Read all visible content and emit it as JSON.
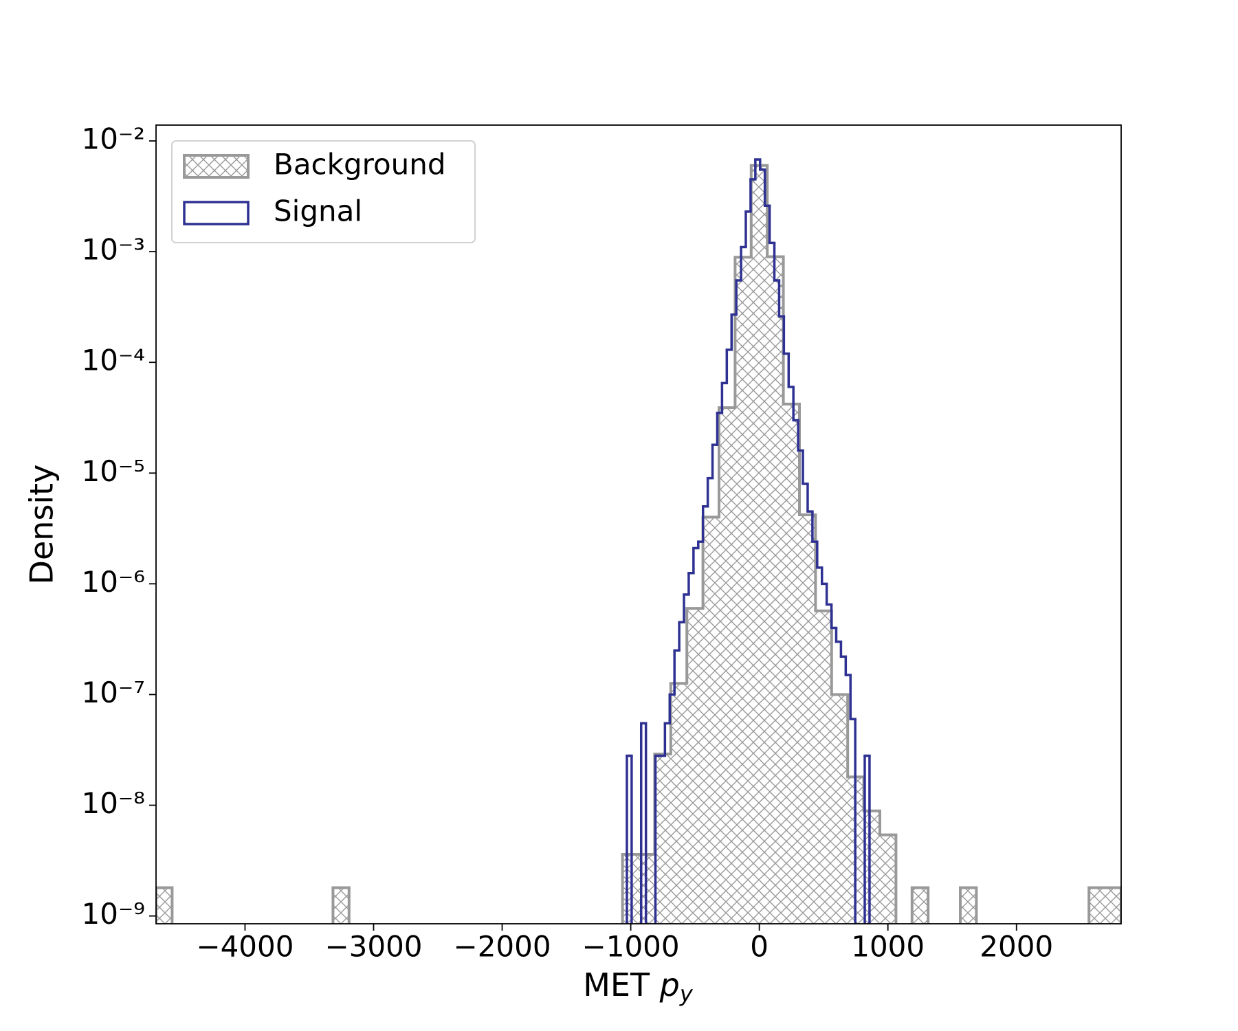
{
  "chart_data": {
    "type": "histogram",
    "xlabel": {
      "text": "MET ",
      "italic": "p",
      "subscript": "y"
    },
    "ylabel": "Density",
    "log_y": true,
    "legend": "upper left",
    "xlim": [
      -4692,
      2814
    ],
    "ylim": [
      8.5e-10,
      0.0139
    ],
    "xticks": [
      {
        "value": -4000,
        "label": "−4000"
      },
      {
        "value": -3000,
        "label": "−3000"
      },
      {
        "value": -2000,
        "label": "−2000"
      },
      {
        "value": -1000,
        "label": "−1000"
      },
      0,
      1000,
      2000
    ],
    "yticks": [
      {
        "value": 1e-09,
        "label": "10⁻⁹"
      },
      {
        "value": 1e-08,
        "label": "10⁻⁸"
      },
      {
        "value": 1e-07,
        "label": "10⁻⁷"
      },
      {
        "value": 1e-06,
        "label": "10⁻⁶"
      },
      {
        "value": 1e-05,
        "label": "10⁻⁵"
      },
      {
        "value": 0.0001,
        "label": "10⁻⁴"
      },
      {
        "value": 0.001,
        "label": "10⁻³"
      },
      {
        "value": 0.01,
        "label": "10⁻²"
      }
    ],
    "series": [
      {
        "name": "Background",
        "color": "#999999",
        "hatch": true,
        "bins": [
          -4692.0,
          -4566.9,
          -4441.8,
          -4316.7,
          -4191.6,
          -4066.5,
          -3941.4,
          -3816.3,
          -3691.2,
          -3566.1,
          -3441.0,
          -3315.9,
          -3190.8,
          -3065.7,
          -2940.6,
          -2815.5,
          -2690.4,
          -2565.3,
          -2440.2,
          -2315.1,
          -2190.0,
          -2064.9,
          -1939.8,
          -1814.7,
          -1689.6,
          -1564.5,
          -1439.4,
          -1314.3,
          -1189.2,
          -1064.1,
          -939.0,
          -813.9,
          -688.8,
          -563.7,
          -438.6,
          -313.5,
          -188.4,
          -63.3,
          61.8,
          186.9,
          312.0,
          437.1,
          562.2,
          687.3,
          812.4,
          937.5,
          1062.6,
          1187.7,
          1312.8,
          1437.9,
          1563.0,
          1688.1,
          1813.2,
          1938.3,
          2063.4,
          2188.5,
          2313.6,
          2438.7,
          2563.8,
          2688.9,
          2814.0
        ],
        "values": [
          1.8e-09,
          0,
          0,
          0,
          0,
          0,
          0,
          0,
          0,
          0,
          0,
          1.8e-09,
          0,
          0,
          0,
          0,
          0,
          0,
          0,
          0,
          0,
          0,
          0,
          0,
          0,
          0,
          0,
          0,
          0,
          3.6e-09,
          3.6e-09,
          2.9e-08,
          1.26e-07,
          6e-07,
          4e-06,
          3.9e-05,
          0.00089,
          0.006,
          0.0009,
          4.2e-05,
          4.2e-06,
          5.7e-07,
          1e-07,
          1.8e-08,
          8.9e-09,
          5.4e-09,
          0,
          1.8e-09,
          0,
          0,
          1.8e-09,
          0,
          0,
          0,
          0,
          0,
          0,
          0,
          1.8e-09,
          1.8e-09
        ]
      },
      {
        "name": "Signal",
        "color": "#2e3192",
        "hatch": false,
        "bins": [
          -1030,
          -993,
          -956,
          -919,
          -882,
          -845,
          -808,
          -771,
          -734,
          -697,
          -660,
          -623,
          -586,
          -549,
          -512,
          -475,
          -438,
          -401,
          -364,
          -327,
          -290,
          -253,
          -216,
          -179,
          -142,
          -105,
          -68,
          -31,
          6,
          43,
          80,
          117,
          154,
          191,
          228,
          265,
          302,
          339,
          376,
          413,
          450,
          487,
          524,
          561,
          598,
          635,
          672,
          709,
          746,
          783,
          820,
          857,
          894
        ],
        "values": [
          2.8e-08,
          0,
          0,
          5.5e-08,
          0,
          0,
          2.8e-08,
          2.8e-08,
          5.5e-08,
          1e-07,
          2.5e-07,
          4.5e-07,
          8e-07,
          1.25e-06,
          2.1e-06,
          2.4e-06,
          5e-06,
          9e-06,
          1.8e-05,
          3.5e-05,
          6.5e-05,
          0.00013,
          0.00027,
          0.00055,
          0.0011,
          0.0023,
          0.0045,
          0.0068,
          0.0055,
          0.0026,
          0.0012,
          0.00055,
          0.00026,
          0.00012,
          6e-05,
          3e-05,
          1.6e-05,
          8e-06,
          4.5e-06,
          2.4e-06,
          1.4e-06,
          1e-06,
          6.5e-07,
          4e-07,
          3e-07,
          2.2e-07,
          1.5e-07,
          6e-08,
          0,
          0,
          2.8e-08,
          0
        ]
      }
    ]
  }
}
